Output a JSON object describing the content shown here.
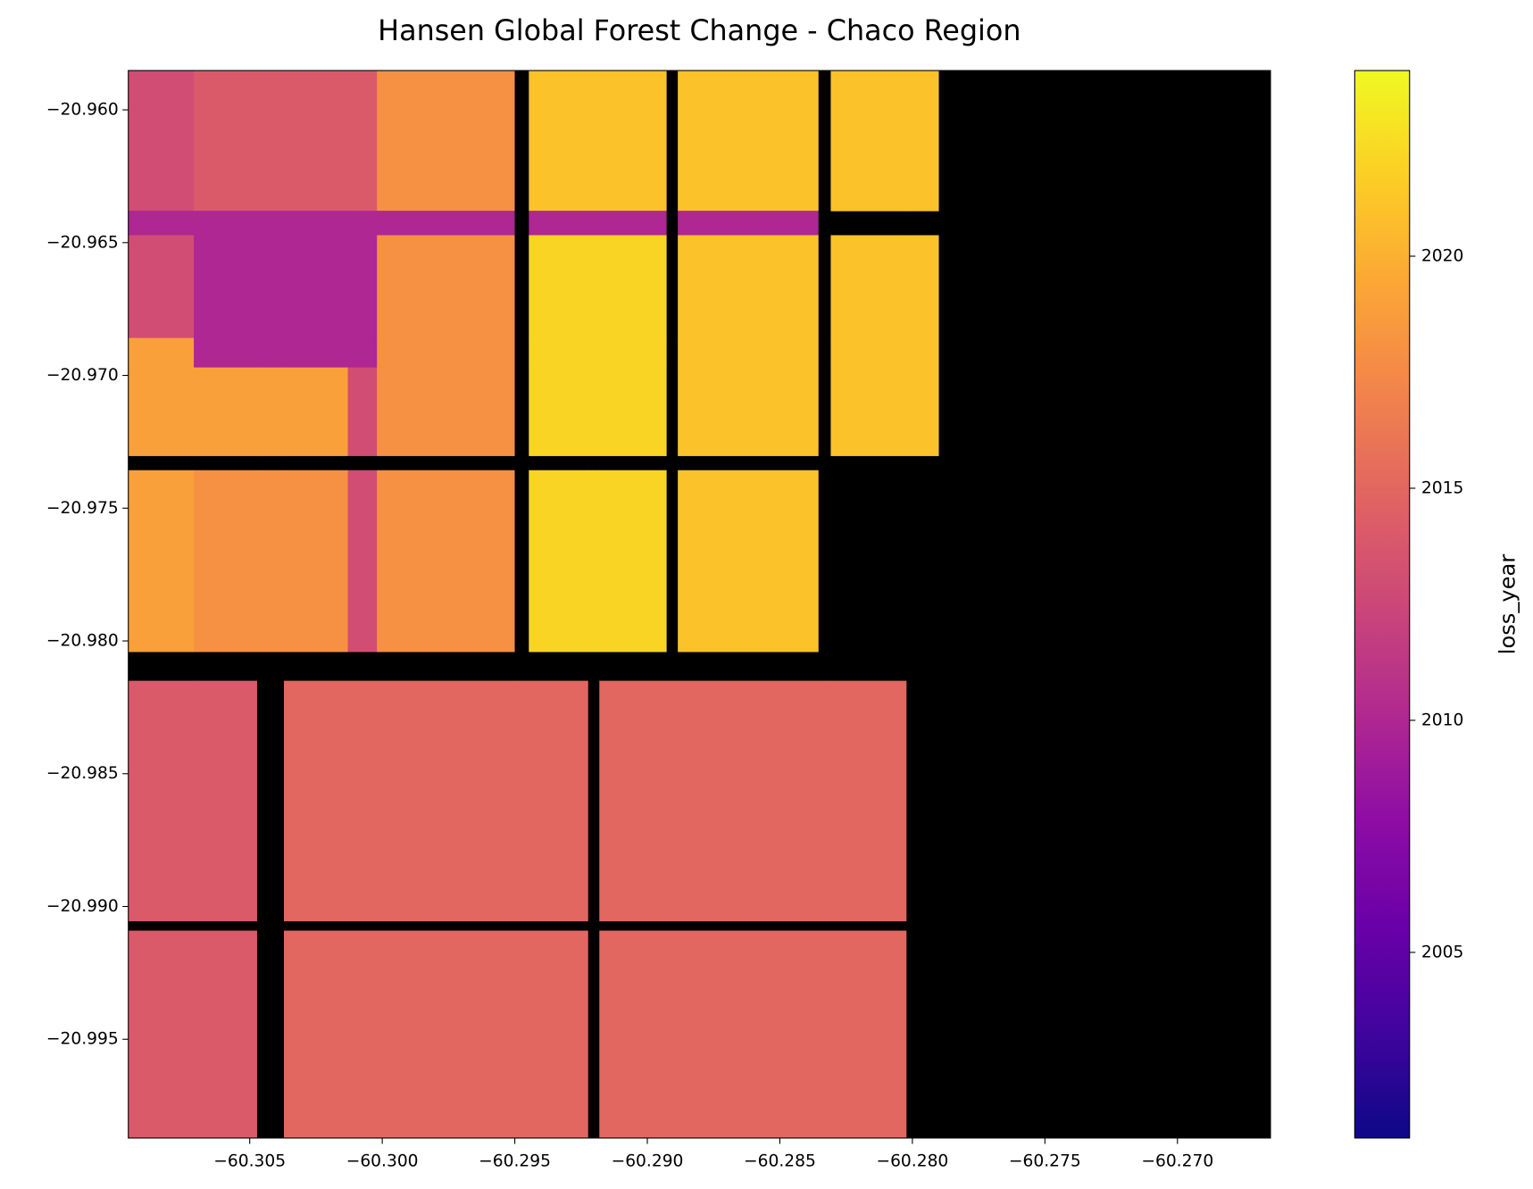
{
  "chart_data": {
    "type": "heatmap",
    "title": "Hansen Global Forest Change - Chaco Region",
    "x": [
      -60.30958,
      -60.30711,
      -60.30474,
      -60.30371,
      -60.3013,
      -60.3002,
      -60.29502,
      -60.29447,
      -60.29225,
      -60.29181,
      -60.28929,
      -60.28885,
      -60.28356,
      -60.28308,
      -60.28024,
      -60.27902,
      -60.26649
    ],
    "y": [
      -20.95852,
      -20.9638,
      -20.96472,
      -20.96859,
      -20.9697,
      -20.97302,
      -20.97357,
      -20.9804,
      -20.9815,
      -20.99054,
      -20.99091,
      -20.99872
    ],
    "values": [
      [
        2013,
        2014,
        2014,
        2014,
        2014,
        2018,
        null,
        2021,
        2021,
        2021,
        null,
        2021,
        null,
        2021,
        2021,
        null
      ],
      [
        2010,
        2010,
        2010,
        2010,
        2010,
        2010,
        null,
        2010,
        2010,
        2010,
        null,
        2010,
        null,
        null,
        null,
        null
      ],
      [
        2013,
        2010,
        2010,
        2010,
        2010,
        2018,
        null,
        2022,
        2022,
        2022,
        null,
        2021,
        null,
        2021,
        2021,
        null
      ],
      [
        2019,
        2010,
        2010,
        2010,
        2010,
        2018,
        null,
        2022,
        2022,
        2022,
        null,
        2021,
        null,
        2021,
        2021,
        null
      ],
      [
        2019,
        2019,
        2019,
        2019,
        2013,
        2018,
        null,
        2022,
        2022,
        2022,
        null,
        2021,
        null,
        2021,
        2021,
        null
      ],
      [
        null,
        null,
        null,
        null,
        null,
        null,
        null,
        null,
        null,
        null,
        null,
        null,
        null,
        null,
        null,
        null
      ],
      [
        2019,
        2018,
        2018,
        2018,
        2013,
        2018,
        null,
        2022,
        2022,
        2022,
        null,
        2021,
        null,
        null,
        null,
        null
      ],
      [
        null,
        null,
        null,
        null,
        null,
        null,
        null,
        null,
        null,
        null,
        null,
        null,
        null,
        null,
        null,
        null
      ],
      [
        2014,
        2014,
        null,
        2015,
        2015,
        2015,
        2015,
        2015,
        null,
        2015,
        2015,
        2015,
        2015,
        2015,
        null,
        null
      ],
      [
        null,
        null,
        null,
        null,
        null,
        null,
        null,
        null,
        null,
        null,
        null,
        null,
        null,
        null,
        null,
        null
      ],
      [
        2014,
        2014,
        null,
        2015,
        2015,
        2015,
        2015,
        2015,
        null,
        2015,
        2015,
        2015,
        2015,
        2015,
        null,
        null
      ]
    ],
    "xlim": [
      -60.30958,
      -60.26649
    ],
    "ylim": [
      -20.99872,
      -20.95852
    ],
    "xticks": [
      {
        "value": -60.305,
        "label": "−60.305"
      },
      {
        "value": -60.3,
        "label": "−60.300"
      },
      {
        "value": -60.295,
        "label": "−60.295"
      },
      {
        "value": -60.29,
        "label": "−60.290"
      },
      {
        "value": -60.285,
        "label": "−60.285"
      },
      {
        "value": -60.28,
        "label": "−60.280"
      },
      {
        "value": -60.275,
        "label": "−60.275"
      },
      {
        "value": -60.27,
        "label": "−60.270"
      }
    ],
    "yticks": [
      {
        "value": -20.96,
        "label": "−20.960"
      },
      {
        "value": -20.965,
        "label": "−20.965"
      },
      {
        "value": -20.97,
        "label": "−20.970"
      },
      {
        "value": -20.975,
        "label": "−20.975"
      },
      {
        "value": -20.98,
        "label": "−20.980"
      },
      {
        "value": -20.985,
        "label": "−20.985"
      },
      {
        "value": -20.99,
        "label": "−20.990"
      },
      {
        "value": -20.995,
        "label": "−20.995"
      }
    ],
    "colormap": "plasma",
    "nan_color": "#000000",
    "clim": [
      2001,
      2024
    ],
    "colorbar_label": "loss_year",
    "colorbar_ticks": [
      2005,
      2010,
      2015,
      2020
    ]
  }
}
